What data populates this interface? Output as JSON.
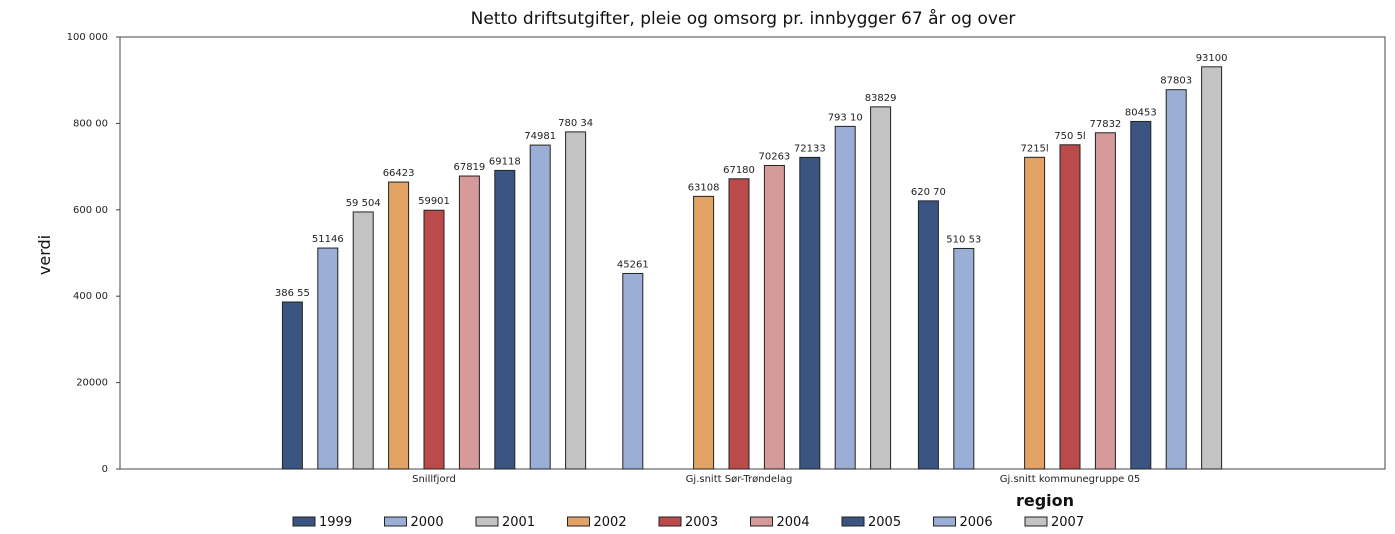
{
  "chart_data": {
    "type": "bar",
    "title": "Netto driftsutgifter, pleie og omsorg pr. innbygger 67 år og over",
    "xlabel": "region",
    "ylabel": "verdi",
    "ylim": [
      0,
      100000
    ],
    "yticks": [
      0,
      20000,
      40000,
      60000,
      80000,
      100000
    ],
    "ytick_labels": [
      "0",
      "20000",
      "400 00",
      "600 00",
      "800 00",
      "100 000"
    ],
    "grid": false,
    "legend_position": "bottom",
    "categories": [
      "Snillfjord",
      "Gj.snitt Sør-Trøndelag",
      "Gj.snitt kommunegruppe 05"
    ],
    "series": [
      {
        "name": "1999",
        "color": "#3b5583",
        "values": [
          38655,
          null,
          62070
        ],
        "labels": [
          "386 55",
          null,
          "620 70"
        ]
      },
      {
        "name": "2000",
        "color": "#9aaed6",
        "values": [
          51146,
          45261,
          51053
        ],
        "labels": [
          "51146",
          "45261",
          "510 53"
        ]
      },
      {
        "name": "2001",
        "color": "#c3c3c3",
        "values": [
          59504,
          null,
          null
        ],
        "labels": [
          "59 504",
          null,
          null
        ]
      },
      {
        "name": "2002",
        "color": "#e3a365",
        "values": [
          66423,
          63108,
          72151
        ],
        "labels": [
          "66423",
          "63108",
          "7215l"
        ]
      },
      {
        "name": "2003",
        "color": "#bb4b4b",
        "values": [
          59901,
          67180,
          75051
        ],
        "labels": [
          "59901",
          "67180",
          "750 5l"
        ]
      },
      {
        "name": "2004",
        "color": "#d69a9a",
        "values": [
          67819,
          70263,
          77832
        ],
        "labels": [
          "67819",
          "70263",
          "77832"
        ]
      },
      {
        "name": "2005",
        "color": "#3b5583",
        "values": [
          69118,
          72133,
          80453
        ],
        "labels": [
          "69118",
          "72133",
          "80453"
        ]
      },
      {
        "name": "2006",
        "color": "#9aaed6",
        "values": [
          74981,
          79310,
          87803
        ],
        "labels": [
          "74981",
          "793 10",
          "87803"
        ]
      },
      {
        "name": "2007",
        "color": "#c3c3c3",
        "values": [
          78034,
          83829,
          93100
        ],
        "labels": [
          "780 34",
          "83829",
          "93100"
        ]
      }
    ]
  }
}
